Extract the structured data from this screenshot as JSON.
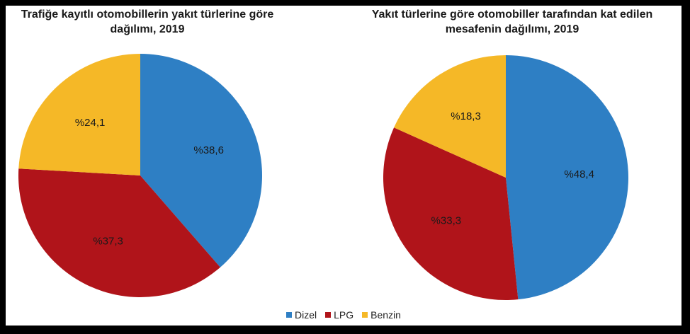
{
  "chart_data": [
    {
      "type": "pie",
      "title": "Trafiğe kayıtlı otomobillerin yakıt türlerine göre dağılımı, 2019",
      "slices": [
        {
          "name": "Dizel",
          "value": 38.6,
          "label": "%38,6",
          "color": "#2E7FC4"
        },
        {
          "name": "LPG",
          "value": 37.3,
          "label": "%37,3",
          "color": "#B0141A"
        },
        {
          "name": "Benzin",
          "value": 24.1,
          "label": "%24,1",
          "color": "#F5B827"
        }
      ]
    },
    {
      "type": "pie",
      "title": "Yakıt türlerine göre otomobiller tarafından kat edilen mesafenin dağılımı, 2019",
      "slices": [
        {
          "name": "Dizel",
          "value": 48.4,
          "label": "%48,4",
          "color": "#2E7FC4"
        },
        {
          "name": "LPG",
          "value": 33.3,
          "label": "%33,3",
          "color": "#B0141A"
        },
        {
          "name": "Benzin",
          "value": 18.3,
          "label": "%18,3",
          "color": "#F5B827"
        }
      ]
    }
  ],
  "legend": {
    "placement": "bottom",
    "items": [
      {
        "label": "Dizel",
        "color": "#2E7FC4"
      },
      {
        "label": "LPG",
        "color": "#B0141A"
      },
      {
        "label": "Benzin",
        "color": "#F5B827"
      }
    ]
  }
}
